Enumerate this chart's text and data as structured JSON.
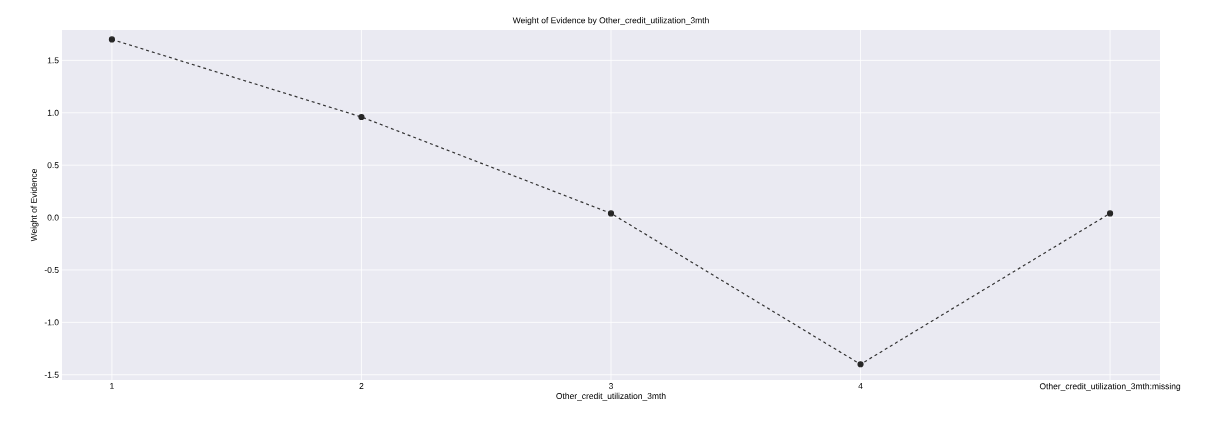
{
  "chart_data": {
    "type": "line",
    "title": "Weight of Evidence by Other_credit_utilization_3mth",
    "xlabel": "Other_credit_utilization_3mth",
    "ylabel": "Weight of Evidence",
    "categories": [
      "1",
      "2",
      "3",
      "4",
      "Other_credit_utilization_3mth:missing"
    ],
    "values": [
      1.7,
      0.96,
      0.04,
      -1.4,
      0.04
    ],
    "color": "#333333",
    "marker": "circle",
    "line_style": "dashed",
    "grid": true,
    "ylim": [
      -1.55,
      1.79
    ],
    "yticks": [
      {
        "value": -1.5,
        "label": "-1.5"
      },
      {
        "value": -1.0,
        "label": "-1.0"
      },
      {
        "value": -0.5,
        "label": "-0.5"
      },
      {
        "value": 0.0,
        "label": "0.0"
      },
      {
        "value": 0.5,
        "label": "0.5"
      },
      {
        "value": 1.0,
        "label": "1.0"
      },
      {
        "value": 1.5,
        "label": "1.5"
      }
    ]
  }
}
